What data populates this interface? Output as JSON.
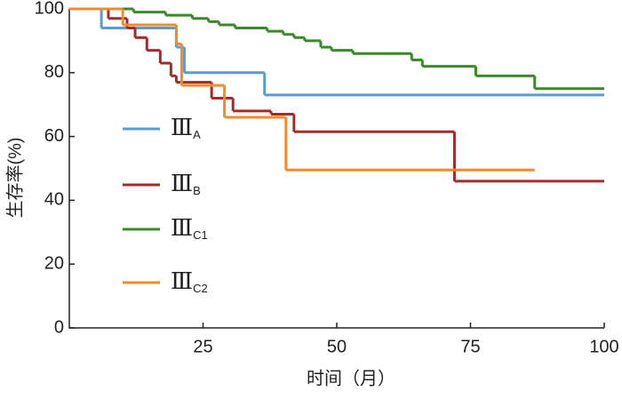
{
  "chart_data": {
    "type": "step",
    "xlabel": "时间（月）",
    "ylabel": "生存率(%)",
    "xlim": [
      0,
      100
    ],
    "ylim": [
      0,
      100
    ],
    "xticks": [
      25,
      50,
      75,
      100
    ],
    "yticks": [
      0,
      20,
      40,
      60,
      80,
      100
    ],
    "series": [
      {
        "name": "ⅢA",
        "color": "#5b9bd5",
        "x": [
          0,
          6,
          20,
          21.5,
          36.5,
          100
        ],
        "values": [
          100,
          94,
          88,
          80,
          73,
          73
        ]
      },
      {
        "name": "ⅢB",
        "color": "#a52a2a",
        "x": [
          0,
          7.3,
          10.8,
          12.3,
          14.5,
          17,
          19,
          20,
          26.6,
          30.6,
          37.7,
          42,
          72,
          100
        ],
        "values": [
          100,
          97,
          94,
          91,
          87,
          83,
          79,
          77,
          72,
          68,
          67,
          61.5,
          46,
          46
        ]
      },
      {
        "name": "ⅢC1",
        "color": "#3a8a2a",
        "x": [
          0,
          12,
          18,
          23,
          26,
          28,
          31,
          37,
          40,
          42,
          44,
          47,
          49,
          53,
          64,
          66,
          76,
          87,
          100
        ],
        "values": [
          100,
          99,
          98,
          97,
          96,
          95,
          94,
          93,
          92,
          91,
          90,
          88,
          87,
          86,
          84,
          82,
          79,
          75,
          75
        ]
      },
      {
        "name": "ⅢC2",
        "color": "#f28c28",
        "x": [
          0,
          10,
          20,
          21,
          29,
          40.5,
          87
        ],
        "values": [
          100,
          95,
          89,
          76,
          66,
          49.5,
          49.5
        ]
      }
    ]
  }
}
